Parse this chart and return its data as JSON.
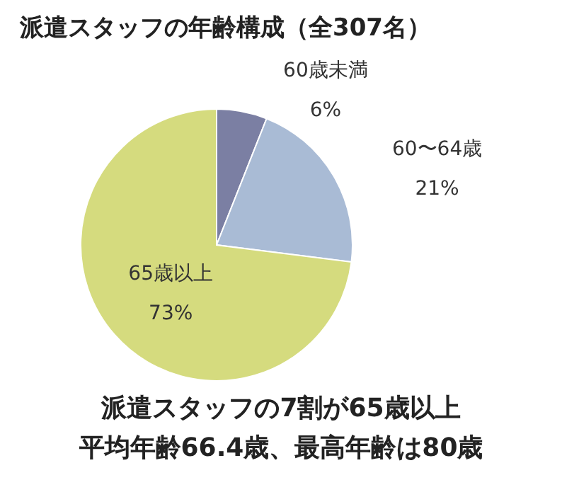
{
  "chart_data": {
    "type": "pie",
    "title": "派遣スタッフの年齢構成（全307名）",
    "categories": [
      "60歳未満",
      "60〜64歳",
      "65歳以上"
    ],
    "values": [
      6,
      21,
      73
    ],
    "colors": [
      "#7b7fa3",
      "#a9bbd5",
      "#d5db7e"
    ],
    "value_labels": [
      "6%",
      "21%",
      "73%"
    ],
    "annotations": [
      "派遣スタッフの7割が65歳以上",
      "平均年齢66.4歳、最高年齢は80歳"
    ]
  }
}
